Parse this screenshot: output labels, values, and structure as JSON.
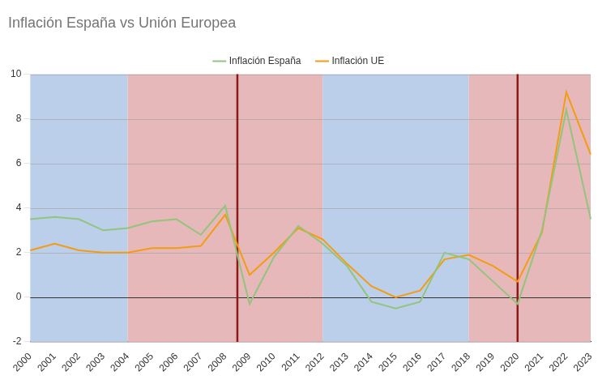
{
  "chart_data": {
    "type": "line",
    "title": "Inflación España vs Unión Europea",
    "categories": [
      "2000",
      "2001",
      "2002",
      "2003",
      "2004",
      "2005",
      "2006",
      "2007",
      "2008",
      "2009",
      "2010",
      "2011",
      "2012",
      "2013",
      "2014",
      "2015",
      "2016",
      "2017",
      "2018",
      "2019",
      "2020",
      "2021",
      "2022",
      "2023"
    ],
    "series": [
      {
        "name": "Inflación España",
        "color": "#93c47d",
        "values": [
          3.5,
          3.6,
          3.5,
          3.0,
          3.1,
          3.4,
          3.5,
          2.8,
          4.1,
          -0.3,
          1.8,
          3.2,
          2.4,
          1.4,
          -0.2,
          -0.5,
          -0.2,
          2.0,
          1.7,
          0.7,
          -0.3,
          3.0,
          8.4,
          3.5
        ]
      },
      {
        "name": "Inflación UE",
        "color": "#f39c12",
        "values": [
          2.1,
          2.4,
          2.1,
          2.0,
          2.0,
          2.2,
          2.2,
          2.3,
          3.7,
          1.0,
          2.0,
          3.1,
          2.6,
          1.5,
          0.5,
          0.0,
          0.3,
          1.7,
          1.9,
          1.4,
          0.7,
          2.9,
          9.2,
          6.4
        ]
      }
    ],
    "regions": [
      {
        "from": 2000,
        "to": 2004,
        "color": "#bccfea"
      },
      {
        "from": 2004,
        "to": 2012,
        "color": "#e6b8b9"
      },
      {
        "from": 2012,
        "to": 2018,
        "color": "#bccfea"
      },
      {
        "from": 2018,
        "to": 2023,
        "color": "#e6b8b9"
      }
    ],
    "vertical_lines": [
      {
        "x": 2008.5,
        "color": "#8b1a1a"
      },
      {
        "x": 2020,
        "color": "#8b1a1a"
      }
    ],
    "ylim": [
      -2,
      10
    ],
    "yticks": [
      -2,
      0,
      2,
      4,
      6,
      8,
      10
    ],
    "grid": true,
    "legend": "top"
  }
}
